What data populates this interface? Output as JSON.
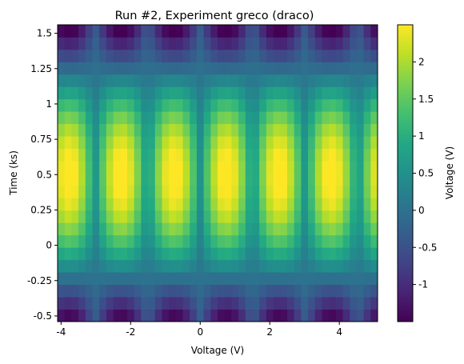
{
  "chart_data": {
    "type": "heatmap",
    "title": "Run #2, Experiment greco (draco)",
    "xlabel": "Voltage (V)",
    "ylabel": "Time (ks)",
    "colorbar_label": "Voltage (V)",
    "colormap": "viridis",
    "x_range": [
      -4.1,
      5.1
    ],
    "y_range": [
      -0.54,
      1.56
    ],
    "x_ticks": [
      -4,
      -2,
      0,
      2,
      4
    ],
    "x_tick_labels": [
      "-4",
      "-2",
      "0",
      "2",
      "4"
    ],
    "y_ticks": [
      -0.5,
      -0.25,
      0,
      0.25,
      0.5,
      0.75,
      1,
      1.25,
      1.5
    ],
    "y_tick_labels": [
      "-0.5",
      "-0.25",
      "0",
      "0.25",
      "0.5",
      "0.75",
      "1",
      "1.25",
      "1.5"
    ],
    "color_range": [
      -1.5,
      2.5
    ],
    "color_ticks": [
      -1,
      -0.5,
      0,
      0.5,
      1,
      1.5,
      2
    ],
    "color_tick_labels": [
      "-1",
      "-0.5",
      "0",
      "0.5",
      "1",
      "1.5",
      "2"
    ],
    "grid": {
      "x_start": -4.1,
      "x_step": 0.2,
      "nx": 46,
      "y_start": -0.54,
      "y_step": 0.0875,
      "ny": 24
    },
    "field": "z(x,t) ≈ 2.1·sin(2.15·t + 0.5)·|sin(2.08·x)| + 0.55·sin(2.15·t + 0.5)"
  }
}
